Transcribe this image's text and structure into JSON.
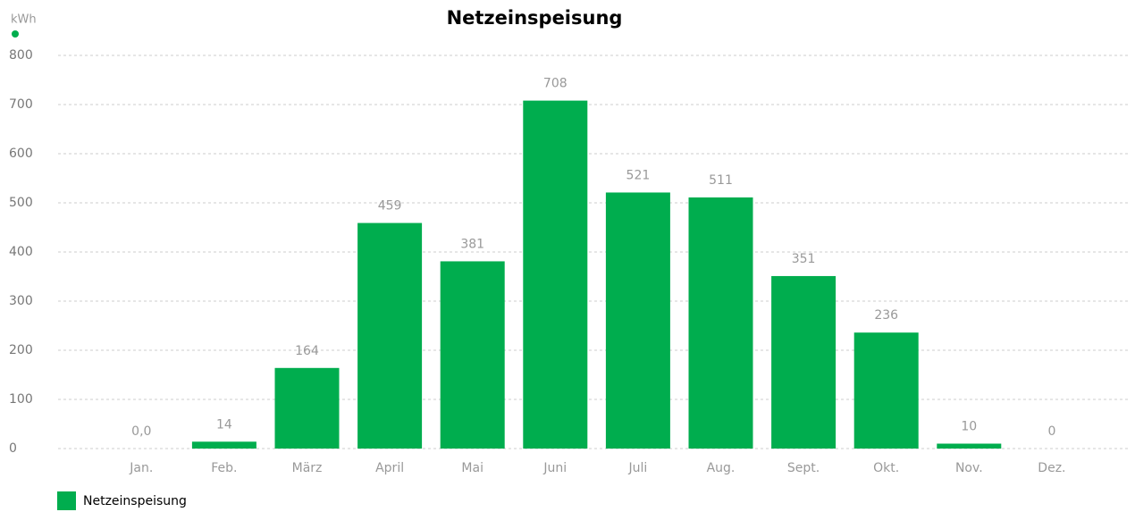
{
  "chart_data": {
    "type": "bar",
    "title": "Netzeinspeisung",
    "y_unit": "kWh",
    "categories": [
      "Jan.",
      "Feb.",
      "März",
      "April",
      "Mai",
      "Juni",
      "Juli",
      "Aug.",
      "Sept.",
      "Okt.",
      "Nov.",
      "Dez."
    ],
    "series": [
      {
        "name": "Netzeinspeisung",
        "color": "#00ad4e",
        "values": [
          0,
          14,
          164,
          459,
          381,
          708,
          521,
          511,
          351,
          236,
          10,
          0
        ],
        "value_labels": [
          "0,0",
          "14",
          "164",
          "459",
          "381",
          "708",
          "521",
          "511",
          "351",
          "236",
          "10",
          "0"
        ]
      }
    ],
    "ylim": [
      0,
      800
    ],
    "yticks": [
      0,
      100,
      200,
      300,
      400,
      500,
      600,
      700,
      800
    ],
    "grid": true,
    "legend": "bottom-left"
  }
}
